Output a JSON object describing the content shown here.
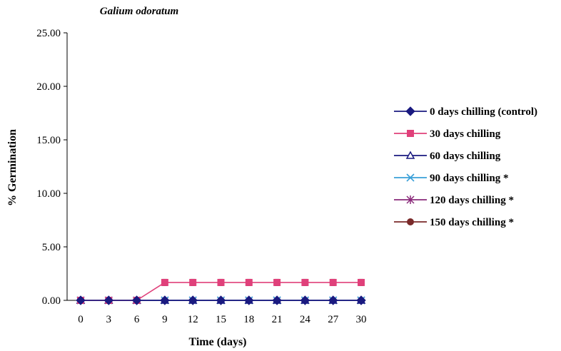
{
  "chart_data": {
    "type": "line",
    "title": "Galium odoratum",
    "xlabel": "Time (days)",
    "ylabel": "% Germination",
    "categories": [
      "0",
      "3",
      "6",
      "9",
      "12",
      "15",
      "18",
      "21",
      "24",
      "27",
      "30"
    ],
    "y_ticks": [
      "0.00",
      "5.00",
      "10.00",
      "15.00",
      "20.00",
      "25.00"
    ],
    "ylim": [
      0,
      25
    ],
    "grid": false,
    "legend_position": "right",
    "series": [
      {
        "name": "0 days chilling (control)",
        "color": "#1a1a80",
        "marker": "diamond",
        "values": [
          0,
          0,
          0,
          0,
          0,
          0,
          0,
          0,
          0,
          0,
          0
        ]
      },
      {
        "name": "30 days chilling",
        "color": "#e0407a",
        "marker": "square",
        "values": [
          0,
          0,
          0,
          1.67,
          1.67,
          1.67,
          1.67,
          1.67,
          1.67,
          1.67,
          1.67
        ],
        "error": [
          0,
          0,
          0,
          0.3,
          0.3,
          0.3,
          0.3,
          0.3,
          0.3,
          0.3,
          0.3
        ]
      },
      {
        "name": "60 days chilling",
        "color": "#1a1a80",
        "marker": "triangle",
        "values": [
          0,
          0,
          0,
          0,
          0,
          0,
          0,
          0,
          0,
          0,
          0
        ]
      },
      {
        "name": "90 days chilling *",
        "color": "#3aa0d8",
        "marker": "x",
        "values": [
          0,
          0,
          0,
          0,
          0,
          0,
          0,
          0,
          0,
          0,
          0
        ]
      },
      {
        "name": "120 days chilling *",
        "color": "#8a2a7a",
        "marker": "star",
        "values": [
          0,
          0,
          0,
          0,
          0,
          0,
          0,
          0,
          0,
          0,
          0
        ]
      },
      {
        "name": "150 days chilling *",
        "color": "#7a2a2a",
        "marker": "circle",
        "values": [
          0,
          0,
          0,
          0,
          0,
          0,
          0,
          0,
          0,
          0,
          0
        ]
      }
    ]
  }
}
